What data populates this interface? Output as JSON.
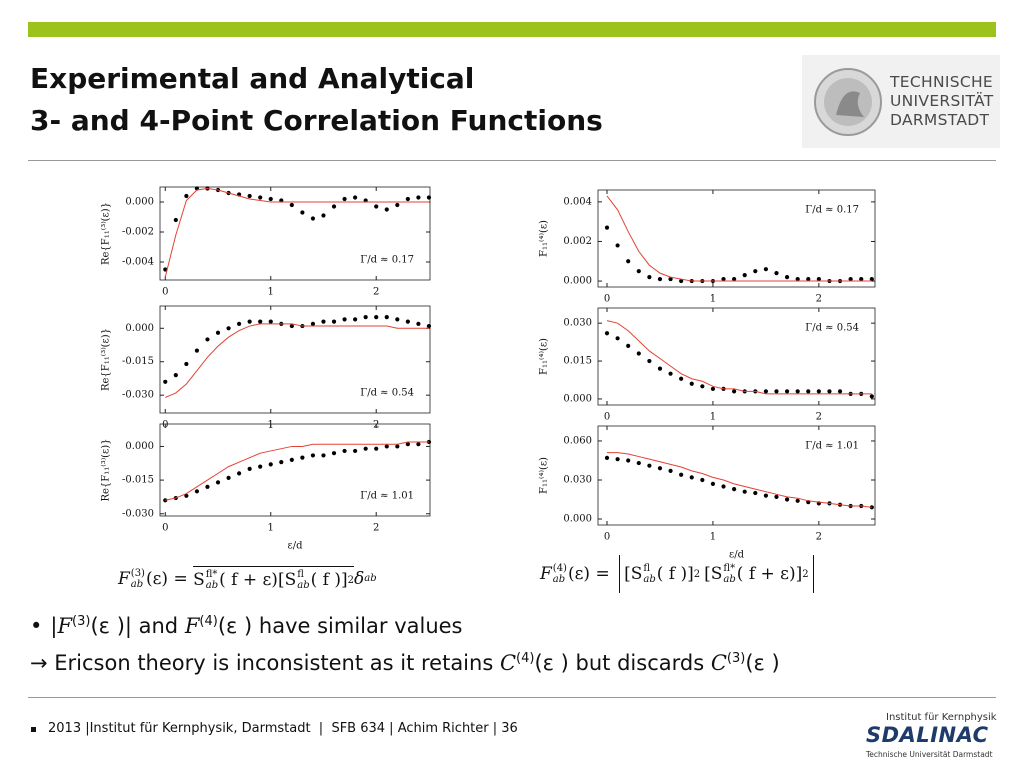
{
  "header": {
    "title_lines": [
      "Experimental and Analytical",
      "3- and 4-Point Correlation Functions"
    ],
    "logo_lines": [
      "TECHNISCHE",
      "UNIVERSITÄT",
      "DARMSTADT"
    ]
  },
  "chart_data": [
    {
      "type": "line",
      "ylabel": "Re{F₁₁⁽³⁾(ε)}",
      "annotation": "Γ/d ≈ 0.17",
      "annotation_corner": "lower right",
      "x": [
        0,
        0.1,
        0.2,
        0.3,
        0.4,
        0.5,
        0.6,
        0.7,
        0.8,
        0.9,
        1,
        1.1,
        1.2,
        1.3,
        1.4,
        1.5,
        1.6,
        1.7,
        1.8,
        1.9,
        2,
        2.1,
        2.2,
        2.3,
        2.4,
        2.5
      ],
      "series": [
        {
          "color": "#000000",
          "mode": "markers",
          "values": [
            -0.0045,
            -0.0012,
            0.0004,
            0.0009,
            0.0009,
            0.0008,
            0.0006,
            0.0005,
            0.0004,
            0.0003,
            0.0002,
            0.0001,
            -0.0002,
            -0.0007,
            -0.0011,
            -0.0009,
            -0.0003,
            0.0002,
            0.0003,
            0.0001,
            -0.0003,
            -0.0005,
            -0.0002,
            0.0002,
            0.0003,
            0.0003
          ]
        },
        {
          "color": "#e34234",
          "mode": "line",
          "values": [
            -0.005,
            -0.0022,
            0.0001,
            0.0008,
            0.0009,
            0.0008,
            0.0006,
            0.0004,
            0.0002,
            0.0001,
            0,
            0,
            0,
            0,
            0,
            0,
            0,
            0,
            0,
            0,
            0,
            0,
            0,
            0,
            0,
            0
          ]
        }
      ],
      "xlim": [
        -0.05,
        2.51
      ],
      "ylim": [
        -0.0052,
        0.001
      ],
      "xticks": [
        0,
        1,
        2
      ],
      "yticks": [
        {
          "value": 0,
          "label": "0.000"
        },
        -0.002,
        -0.004
      ]
    },
    {
      "type": "line",
      "ylabel": "Re{F₁₁⁽³⁾(ε)}",
      "annotation": "Γ/d ≈ 0.54",
      "annotation_corner": "lower right",
      "x": [
        0,
        0.1,
        0.2,
        0.3,
        0.4,
        0.5,
        0.6,
        0.7,
        0.8,
        0.9,
        1,
        1.1,
        1.2,
        1.3,
        1.4,
        1.5,
        1.6,
        1.7,
        1.8,
        1.9,
        2,
        2.1,
        2.2,
        2.3,
        2.4,
        2.5
      ],
      "series": [
        {
          "color": "#000000",
          "mode": "markers",
          "values": [
            -0.024,
            -0.021,
            -0.016,
            -0.01,
            -0.005,
            -0.002,
            0,
            0.002,
            0.003,
            0.003,
            0.003,
            0.002,
            0.001,
            0.001,
            0.002,
            0.003,
            0.003,
            0.004,
            0.004,
            0.005,
            0.005,
            0.005,
            0.004,
            0.003,
            0.002,
            0.001
          ]
        },
        {
          "color": "#e34234",
          "mode": "line",
          "values": [
            -0.031,
            -0.029,
            -0.025,
            -0.019,
            -0.013,
            -0.008,
            -0.004,
            -0.001,
            0.001,
            0.002,
            0.002,
            0.002,
            0.002,
            0.001,
            0.001,
            0.001,
            0.001,
            0.001,
            0.001,
            0.001,
            0.001,
            0.001,
            0,
            0,
            0,
            0
          ]
        }
      ],
      "xlim": [
        -0.05,
        2.51
      ],
      "ylim": [
        -0.038,
        0.01
      ],
      "xticks": [
        0,
        1,
        2
      ],
      "yticks": [
        {
          "value": 0,
          "label": "0.000"
        },
        -0.015,
        {
          "value": -0.03,
          "label": "-0.030"
        }
      ]
    },
    {
      "type": "line",
      "ylabel": "Re{F₁₁⁽³⁾(ε)}",
      "annotation": "Γ/d ≈ 1.01",
      "annotation_corner": "lower right",
      "xlabel": "ε/d",
      "x": [
        0,
        0.1,
        0.2,
        0.3,
        0.4,
        0.5,
        0.6,
        0.7,
        0.8,
        0.9,
        1,
        1.1,
        1.2,
        1.3,
        1.4,
        1.5,
        1.6,
        1.7,
        1.8,
        1.9,
        2,
        2.1,
        2.2,
        2.3,
        2.4,
        2.5
      ],
      "series": [
        {
          "color": "#000000",
          "mode": "markers",
          "values": [
            -0.024,
            -0.023,
            -0.022,
            -0.02,
            -0.018,
            -0.016,
            -0.014,
            -0.012,
            -0.01,
            -0.009,
            -0.008,
            -0.007,
            -0.006,
            -0.005,
            -0.004,
            -0.004,
            -0.003,
            -0.002,
            -0.002,
            -0.001,
            -0.001,
            0,
            0,
            0.001,
            0.001,
            0.002
          ]
        },
        {
          "color": "#e34234",
          "mode": "line",
          "values": [
            -0.024,
            -0.023,
            -0.021,
            -0.018,
            -0.015,
            -0.012,
            -0.009,
            -0.007,
            -0.005,
            -0.003,
            -0.002,
            -0.001,
            0,
            0,
            0.001,
            0.001,
            0.001,
            0.001,
            0.001,
            0.001,
            0.001,
            0.001,
            0.001,
            0.002,
            0.002,
            0.002
          ]
        }
      ],
      "xlim": [
        -0.05,
        2.51
      ],
      "ylim": [
        -0.031,
        0.01
      ],
      "xticks": [
        0,
        1,
        2
      ],
      "yticks": [
        {
          "value": 0,
          "label": "0.000"
        },
        -0.015,
        {
          "value": -0.03,
          "label": "-0.030"
        }
      ]
    },
    {
      "type": "line",
      "ylabel": "F₁₁⁽⁴⁾(ε)",
      "annotation": "Γ/d ≈ 0.17",
      "annotation_corner": "upper right",
      "x": [
        0,
        0.1,
        0.2,
        0.3,
        0.4,
        0.5,
        0.6,
        0.7,
        0.8,
        0.9,
        1,
        1.1,
        1.2,
        1.3,
        1.4,
        1.5,
        1.6,
        1.7,
        1.8,
        1.9,
        2,
        2.1,
        2.2,
        2.3,
        2.4,
        2.5
      ],
      "series": [
        {
          "color": "#000000",
          "mode": "markers",
          "values": [
            0.0027,
            0.0018,
            0.001,
            0.0005,
            0.0002,
            0.0001,
            0.0001,
            0,
            0,
            0,
            0,
            0.0001,
            0.0001,
            0.0003,
            0.0005,
            0.0006,
            0.0004,
            0.0002,
            0.0001,
            0.0001,
            0.0001,
            0,
            0,
            0.0001,
            0.0001,
            0.0001
          ]
        },
        {
          "color": "#e34234",
          "mode": "line",
          "values": [
            0.0043,
            0.0036,
            0.0025,
            0.0015,
            0.0008,
            0.0004,
            0.0002,
            0.0001,
            0,
            0,
            0,
            0,
            0,
            0,
            0,
            0,
            0,
            0,
            0,
            0,
            0,
            0,
            0,
            0,
            0,
            0
          ]
        }
      ],
      "xlim": [
        -0.085,
        2.53
      ],
      "ylim": [
        -0.0003,
        0.0046
      ],
      "xticks": [
        0,
        1,
        2
      ],
      "yticks": [
        0.004,
        0.002,
        {
          "value": 0,
          "label": "0.000"
        }
      ]
    },
    {
      "type": "line",
      "ylabel": "F₁₁⁽⁴⁾(ε)",
      "annotation": "Γ/d ≈ 0.54",
      "annotation_corner": "upper right",
      "x": [
        0,
        0.1,
        0.2,
        0.3,
        0.4,
        0.5,
        0.6,
        0.7,
        0.8,
        0.9,
        1,
        1.1,
        1.2,
        1.3,
        1.4,
        1.5,
        1.6,
        1.7,
        1.8,
        1.9,
        2,
        2.1,
        2.2,
        2.3,
        2.4,
        2.5
      ],
      "series": [
        {
          "color": "#000000",
          "mode": "markers",
          "values": [
            0.026,
            0.024,
            0.021,
            0.018,
            0.015,
            0.012,
            0.01,
            0.008,
            0.006,
            0.005,
            0.004,
            0.004,
            0.003,
            0.003,
            0.003,
            0.003,
            0.003,
            0.003,
            0.003,
            0.003,
            0.003,
            0.003,
            0.003,
            0.002,
            0.002,
            0.001
          ]
        },
        {
          "color": "#e34234",
          "mode": "line",
          "values": [
            0.031,
            0.03,
            0.027,
            0.023,
            0.019,
            0.016,
            0.013,
            0.01,
            0.008,
            0.007,
            0.005,
            0.004,
            0.004,
            0.003,
            0.003,
            0.002,
            0.002,
            0.002,
            0.002,
            0.002,
            0.002,
            0.002,
            0.002,
            0.002,
            0.002,
            0.002
          ]
        }
      ],
      "xlim": [
        -0.085,
        2.53
      ],
      "ylim": [
        -0.0024,
        0.036
      ],
      "xticks": [
        0,
        1,
        2
      ],
      "yticks": [
        {
          "value": 0.03,
          "label": "0.030"
        },
        0.015,
        {
          "value": 0,
          "label": "0.000"
        }
      ]
    },
    {
      "type": "line",
      "ylabel": "F₁₁⁽⁴⁾(ε)",
      "annotation": "Γ/d ≈ 1.01",
      "annotation_corner": "upper right",
      "xlabel": "ε/d",
      "x": [
        0,
        0.1,
        0.2,
        0.3,
        0.4,
        0.5,
        0.6,
        0.7,
        0.8,
        0.9,
        1,
        1.1,
        1.2,
        1.3,
        1.4,
        1.5,
        1.6,
        1.7,
        1.8,
        1.9,
        2,
        2.1,
        2.2,
        2.3,
        2.4,
        2.5
      ],
      "series": [
        {
          "color": "#000000",
          "mode": "markers",
          "values": [
            0.047,
            0.046,
            0.045,
            0.043,
            0.041,
            0.039,
            0.037,
            0.034,
            0.032,
            0.03,
            0.027,
            0.025,
            0.023,
            0.021,
            0.02,
            0.018,
            0.017,
            0.015,
            0.014,
            0.013,
            0.012,
            0.012,
            0.011,
            0.01,
            0.01,
            0.009
          ]
        },
        {
          "color": "#e34234",
          "mode": "line",
          "values": [
            0.051,
            0.051,
            0.05,
            0.048,
            0.046,
            0.044,
            0.042,
            0.04,
            0.037,
            0.035,
            0.032,
            0.03,
            0.027,
            0.025,
            0.023,
            0.021,
            0.019,
            0.017,
            0.016,
            0.014,
            0.013,
            0.012,
            0.011,
            0.01,
            0.01,
            0.009
          ]
        }
      ],
      "xlim": [
        -0.085,
        2.53
      ],
      "ylim": [
        -0.0046,
        0.0715
      ],
      "xticks": [
        0,
        1,
        2
      ],
      "yticks": [
        {
          "value": 0.06,
          "label": "0.060"
        },
        {
          "value": 0.03,
          "label": "0.030"
        },
        {
          "value": 0,
          "label": "0.000"
        }
      ]
    }
  ],
  "formulas": {
    "left": [
      "F",
      "(3)",
      "ab",
      "(ε) = ",
      "S",
      "fl*",
      "ab",
      "( f + ε)",
      "[S",
      "fl",
      "ab",
      "( f )]",
      "2",
      "δ",
      "ab"
    ],
    "right": [
      "F",
      "(4)",
      "ab",
      "(ε) = ",
      "[S",
      "fl",
      "ab",
      "( f )]",
      "2",
      "[S",
      "fl*",
      "ab",
      "( f + ε)]",
      "2"
    ]
  },
  "bullets": [
    [
      "•",
      "|",
      "F",
      "(3)",
      "(ε )| and ",
      "F",
      "(4)",
      "(ε ) have similar values"
    ],
    [
      "→ Ericson theory is inconsistent as it retains ",
      "C",
      "(4)",
      "(ε ) but discards ",
      "C",
      "(3)",
      "(ε )"
    ]
  ],
  "footer": {
    "text": "2013 |Institut für Kernphysik, Darmstadt  |  SFB 634 | Achim Richter | 36",
    "logo": {
      "top": "Institut für Kernphysik",
      "name": "SDALINAC",
      "bottom": "Technische Universität Darmstadt"
    }
  }
}
